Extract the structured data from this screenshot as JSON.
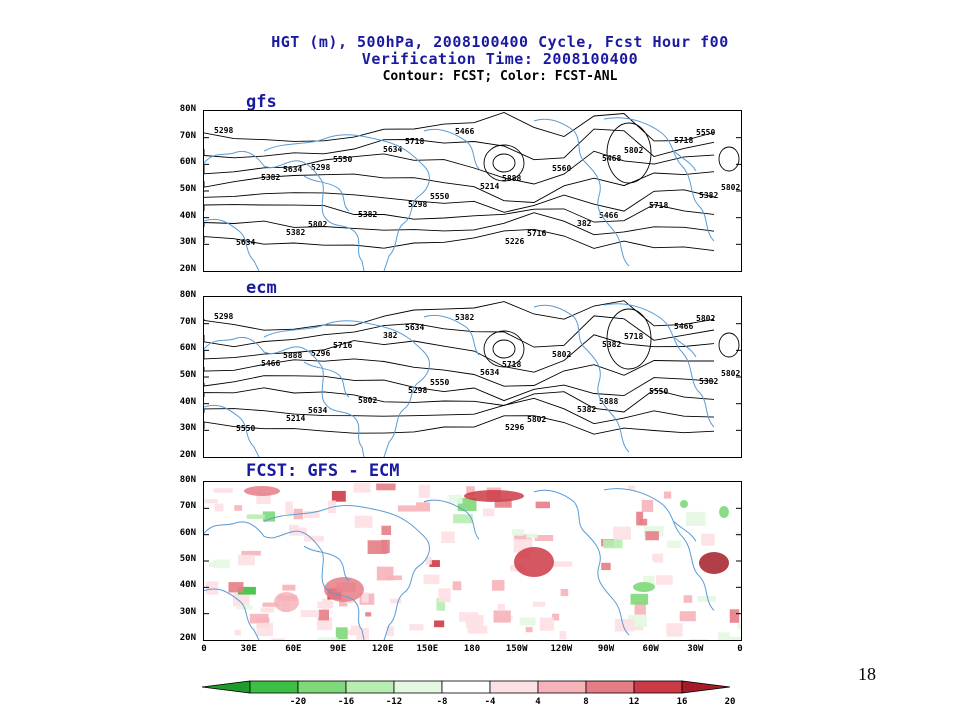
{
  "title": {
    "line1": "HGT (m), 500hPa, 2008100400 Cycle, Fcst Hour f00",
    "line2": "Verification Time: 2008100400",
    "line3": "Contour: FCST; Color: FCST-ANL"
  },
  "panels": [
    {
      "label": "gfs"
    },
    {
      "label": "ecm"
    },
    {
      "label": "FCST: GFS - ECM"
    }
  ],
  "lat_ticks": [
    "80N",
    "70N",
    "60N",
    "50N",
    "40N",
    "30N",
    "20N"
  ],
  "lon_ticks": [
    "0",
    "30E",
    "60E",
    "90E",
    "120E",
    "150E",
    "180",
    "150W",
    "120W",
    "90W",
    "60W",
    "30W",
    "0"
  ],
  "contour_labels_gfs": [
    "5298",
    "5298",
    "5298",
    "5226",
    "5468",
    "5382",
    "5382",
    "5634",
    "5214",
    "382",
    "5718",
    "5382",
    "5382",
    "5466",
    "5560",
    "5718",
    "5634",
    "5550",
    "5550",
    "5716",
    "5802",
    "5802",
    "5802",
    "5718",
    "5888",
    "5466",
    "5550",
    "5634"
  ],
  "contour_labels_ecm": [
    "5298",
    "5296",
    "5298",
    "5296",
    "5382",
    "5382",
    "5214",
    "382",
    "5634",
    "5382",
    "5466",
    "5466",
    "5802",
    "5382",
    "5802",
    "5550",
    "5550",
    "5716",
    "5550",
    "5802",
    "5718",
    "5802",
    "5634",
    "5634",
    "5718",
    "5888",
    "5802",
    "5888"
  ],
  "colorbar": {
    "labels": [
      "-20",
      "-16",
      "-12",
      "-8",
      "-4",
      "4",
      "8",
      "12",
      "16",
      "20"
    ],
    "colors": [
      "#1f9b2a",
      "#3cbf43",
      "#7fd87a",
      "#b7edb1",
      "#e4f8e1",
      "#ffffff",
      "#fde0e3",
      "#f6b3b9",
      "#e67d86",
      "#cc3a45",
      "#a51c28"
    ]
  },
  "colors": {
    "title": "#1a1aa0",
    "coastline": "#5a9bd4",
    "contour": "#000000"
  },
  "slide_number": "18"
}
